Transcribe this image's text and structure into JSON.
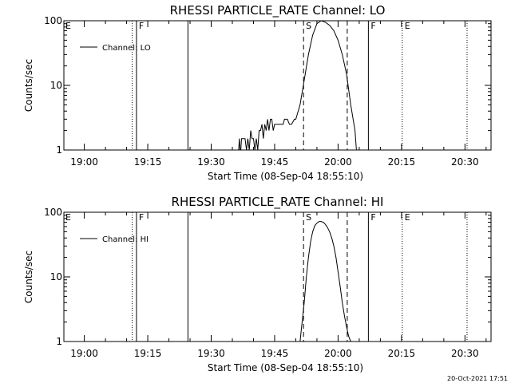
{
  "chart_data": [
    {
      "type": "line",
      "title": "RHESSI PARTICLE_RATE Channel: LO",
      "xlabel": "Start Time (08-Sep-04 18:55:10)",
      "ylabel": "Counts/sec",
      "y_scale": "log",
      "ylim": [
        1,
        100
      ],
      "xlim": [
        "18:55:10",
        "20:36:10"
      ],
      "x_tick_labels": [
        "19:00",
        "19:15",
        "19:30",
        "19:45",
        "20:00",
        "20:15",
        "20:30"
      ],
      "y_tick_labels": [
        "1",
        "10",
        "100"
      ],
      "legend": {
        "entries": [
          "Channel: LO"
        ],
        "placement": "top-left"
      },
      "vertical_markers": [
        {
          "time": "19:11:20",
          "label": "E",
          "style": "dotted"
        },
        {
          "time": "19:12:20",
          "label": "F",
          "style": "solid"
        },
        {
          "time": "19:24:30",
          "label": "",
          "style": "solid"
        },
        {
          "time": "19:51:50",
          "label": "S",
          "style": "dashed"
        },
        {
          "time": "20:02:10",
          "label": "",
          "style": "dashed"
        },
        {
          "time": "20:07:10",
          "label": "F",
          "style": "solid"
        },
        {
          "time": "20:15:10",
          "label": "E",
          "style": "dotted"
        },
        {
          "time": "20:30:30",
          "label": "",
          "style": "dotted"
        }
      ],
      "series": [
        {
          "name": "Channel: LO",
          "x": [
            "19:36:30",
            "19:36:40",
            "19:36:50",
            "19:37:00",
            "19:37:10",
            "19:38:00",
            "19:38:20",
            "19:38:40",
            "19:39:00",
            "19:39:20",
            "19:39:40",
            "19:40:00",
            "19:40:20",
            "19:40:40",
            "19:41:00",
            "19:41:20",
            "19:41:40",
            "19:42:00",
            "19:42:20",
            "19:42:40",
            "19:43:00",
            "19:43:20",
            "19:43:40",
            "19:44:00",
            "19:44:20",
            "19:44:40",
            "19:45:00",
            "19:45:30",
            "19:46:00",
            "19:47:00",
            "19:47:20",
            "19:48:00",
            "19:48:30",
            "19:49:00",
            "19:49:40",
            "19:50:00",
            "19:51:00",
            "19:52:00",
            "19:53:00",
            "19:54:00",
            "19:55:00",
            "19:56:00",
            "19:57:00",
            "19:58:00",
            "19:59:00",
            "20:00:00",
            "20:01:00",
            "20:02:00",
            "20:03:00",
            "20:04:00",
            "20:04:20"
          ],
          "values": [
            1,
            1.5,
            1,
            1,
            1.5,
            1.5,
            1,
            1.5,
            1,
            2,
            1.5,
            1.5,
            1,
            1.5,
            1,
            2,
            2,
            2.5,
            1.5,
            2.5,
            2,
            3,
            2,
            3,
            3,
            2,
            2.5,
            2.5,
            2.5,
            2.5,
            3,
            3,
            2.5,
            2.5,
            3,
            3,
            5,
            12,
            30,
            60,
            90,
            100,
            95,
            85,
            70,
            50,
            30,
            15,
            5,
            2,
            1
          ]
        }
      ]
    },
    {
      "type": "line",
      "title": "RHESSI PARTICLE_RATE Channel: HI",
      "xlabel": "Start Time (08-Sep-04 18:55:10)",
      "ylabel": "Counts/sec",
      "y_scale": "log",
      "ylim": [
        1,
        100
      ],
      "xlim": [
        "18:55:10",
        "20:36:10"
      ],
      "x_tick_labels": [
        "19:00",
        "19:15",
        "19:30",
        "19:45",
        "20:00",
        "20:15",
        "20:30"
      ],
      "y_tick_labels": [
        "1",
        "10",
        "100"
      ],
      "legend": {
        "entries": [
          "Channel: HI"
        ],
        "placement": "top-left"
      },
      "vertical_markers": [
        {
          "time": "19:11:20",
          "label": "E",
          "style": "dotted"
        },
        {
          "time": "19:12:20",
          "label": "F",
          "style": "solid"
        },
        {
          "time": "19:24:30",
          "label": "",
          "style": "solid"
        },
        {
          "time": "19:51:50",
          "label": "S",
          "style": "dashed"
        },
        {
          "time": "20:02:10",
          "label": "",
          "style": "dashed"
        },
        {
          "time": "20:07:10",
          "label": "F",
          "style": "solid"
        },
        {
          "time": "20:15:10",
          "label": "E",
          "style": "dotted"
        },
        {
          "time": "20:30:30",
          "label": "",
          "style": "dotted"
        }
      ],
      "series": [
        {
          "name": "Channel: HI",
          "x": [
            "19:51:00",
            "19:51:30",
            "19:52:00",
            "19:52:30",
            "19:53:00",
            "19:53:30",
            "19:54:00",
            "19:54:30",
            "19:55:00",
            "19:55:30",
            "19:56:00",
            "19:56:30",
            "19:57:00",
            "19:57:30",
            "19:58:00",
            "19:58:30",
            "19:59:00",
            "19:59:30",
            "20:00:00",
            "20:00:30",
            "20:01:00",
            "20:01:30",
            "20:02:00",
            "20:02:30",
            "20:03:00"
          ],
          "values": [
            1,
            2,
            4,
            10,
            20,
            35,
            50,
            62,
            68,
            72,
            72,
            70,
            65,
            58,
            50,
            40,
            30,
            20,
            12,
            7,
            4,
            2.5,
            1.7,
            1.2,
            1
          ]
        }
      ]
    }
  ],
  "footer": {
    "timestamp": "20-Oct-2021 17:51"
  }
}
